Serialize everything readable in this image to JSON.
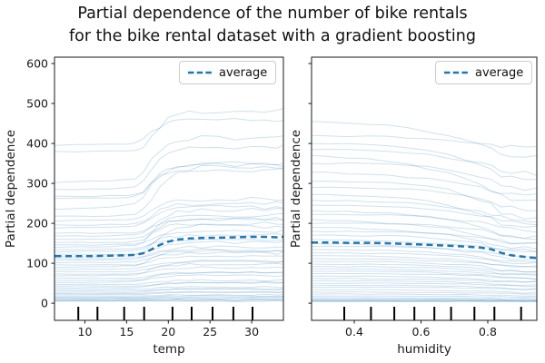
{
  "title": {
    "line1": "Partial dependence of the number of bike rentals",
    "line2": "for the bike rental dataset with a gradient boosting"
  },
  "legend": {
    "label": "average"
  },
  "colors": {
    "ice": "#1f77b4",
    "ice_opacity": "0.22",
    "average": "#1f77b4",
    "axis": "#1a1a1a",
    "rug": "#000000"
  },
  "chart_data": [
    {
      "type": "line",
      "xlabel": "temp",
      "ylabel": "Partial dependence",
      "xlim": [
        6.35,
        33.8
      ],
      "ylim": [
        -43,
        616
      ],
      "xticks": [
        10,
        15,
        20,
        25,
        30
      ],
      "xtick_labels": [
        "10",
        "15",
        "20",
        "25",
        "30"
      ],
      "yticks": [
        0,
        100,
        200,
        300,
        400,
        500,
        600
      ],
      "ytick_labels": [
        "0",
        "100",
        "200",
        "300",
        "400",
        "500",
        "600"
      ],
      "show_ytick_labels": true,
      "legend": "average",
      "legend_position": "upper right",
      "grid": false,
      "deciles": [
        9.2,
        11.5,
        14.7,
        17.1,
        20.5,
        22.8,
        25.3,
        27.8,
        30.1
      ],
      "x": [
        6.4,
        9,
        11,
        13,
        15,
        16,
        17,
        18,
        19,
        20,
        21,
        22.5,
        24,
        26,
        28,
        30,
        31.5,
        33,
        33.8
      ],
      "profile": [
        0,
        0.005,
        0.01,
        0.02,
        0.04,
        0.06,
        0.18,
        0.45,
        0.7,
        0.85,
        0.93,
        0.97,
        1.0,
        1.0,
        1.0,
        1.0,
        0.99,
        1.0,
        1.01
      ],
      "average": [
        118,
        118,
        118,
        119,
        120,
        121,
        125,
        135,
        146,
        154,
        159,
        162,
        163,
        164,
        165,
        166,
        166,
        165,
        166
      ],
      "ice_lines": [
        [
          395,
          65
        ],
        [
          380,
          100
        ],
        [
          302,
          112
        ],
        [
          285,
          105
        ],
        [
          268,
          82
        ],
        [
          262,
          83
        ],
        [
          235,
          105
        ],
        [
          218,
          112
        ],
        [
          205,
          55
        ],
        [
          196,
          54
        ],
        [
          188,
          52
        ],
        [
          175,
          60
        ],
        [
          168,
          42
        ],
        [
          160,
          50
        ],
        [
          152,
          48
        ],
        [
          146,
          34
        ],
        [
          140,
          80
        ],
        [
          134,
          36
        ],
        [
          128,
          32
        ],
        [
          122,
          30
        ],
        [
          117,
          75
        ],
        [
          112,
          28
        ],
        [
          107,
          26
        ],
        [
          101,
          24
        ],
        [
          96,
          22
        ],
        [
          90,
          40
        ],
        [
          85,
          20
        ],
        [
          79,
          18
        ],
        [
          73,
          16
        ],
        [
          68,
          35
        ],
        [
          62,
          14
        ],
        [
          57,
          12
        ],
        [
          52,
          25
        ],
        [
          47,
          10
        ],
        [
          43,
          8
        ],
        [
          39,
          14
        ],
        [
          35,
          6
        ],
        [
          31,
          5
        ],
        [
          27,
          8
        ],
        [
          24,
          4
        ],
        [
          21,
          6
        ],
        [
          18,
          3
        ],
        [
          15,
          3
        ],
        [
          13,
          2
        ],
        [
          11,
          2
        ],
        [
          9,
          1
        ],
        [
          7,
          1
        ],
        [
          6,
          1
        ],
        [
          5,
          0
        ]
      ]
    },
    {
      "type": "line",
      "xlabel": "humidity",
      "ylabel": "Partial dependence",
      "xlim": [
        0.272,
        0.947
      ],
      "ylim": [
        -43,
        616
      ],
      "xticks": [
        0.4,
        0.6,
        0.8
      ],
      "xtick_labels": [
        "0.4",
        "0.6",
        "0.8"
      ],
      "yticks": [
        0,
        100,
        200,
        300,
        400,
        500,
        600
      ],
      "ytick_labels": [],
      "show_ytick_labels": false,
      "legend": "average",
      "legend_position": "upper right",
      "grid": false,
      "deciles": [
        0.37,
        0.45,
        0.52,
        0.58,
        0.64,
        0.69,
        0.76,
        0.82,
        0.9
      ],
      "x": [
        0.272,
        0.32,
        0.38,
        0.44,
        0.5,
        0.56,
        0.62,
        0.68,
        0.73,
        0.78,
        0.81,
        0.84,
        0.87,
        0.91,
        0.947
      ],
      "profile": [
        0,
        0.01,
        0.02,
        0.04,
        0.07,
        0.12,
        0.2,
        0.3,
        0.42,
        0.55,
        0.68,
        0.85,
        0.92,
        0.97,
        1.0
      ],
      "average": [
        152,
        152,
        151,
        151,
        150,
        148,
        146,
        144,
        142,
        139,
        135,
        126,
        120,
        116,
        113
      ],
      "ice_lines": [
        [
          455,
          -90
        ],
        [
          420,
          -30
        ],
        [
          400,
          -95
        ],
        [
          385,
          -60
        ],
        [
          370,
          -115
        ],
        [
          350,
          -65
        ],
        [
          328,
          -60
        ],
        [
          305,
          -95
        ],
        [
          290,
          -55
        ],
        [
          272,
          -85
        ],
        [
          258,
          -50
        ],
        [
          245,
          -45
        ],
        [
          232,
          -70
        ],
        [
          222,
          -40
        ],
        [
          210,
          -60
        ],
        [
          200,
          -35
        ],
        [
          190,
          -55
        ],
        [
          180,
          -30
        ],
        [
          170,
          -45
        ],
        [
          160,
          -28
        ],
        [
          150,
          -40
        ],
        [
          142,
          -25
        ],
        [
          134,
          -35
        ],
        [
          126,
          -22
        ],
        [
          119,
          -30
        ],
        [
          112,
          -20
        ],
        [
          105,
          -25
        ],
        [
          98,
          -18
        ],
        [
          92,
          -22
        ],
        [
          86,
          -15
        ],
        [
          80,
          -18
        ],
        [
          74,
          -12
        ],
        [
          68,
          -15
        ],
        [
          62,
          -10
        ],
        [
          56,
          -12
        ],
        [
          50,
          -8
        ],
        [
          45,
          -10
        ],
        [
          40,
          -6
        ],
        [
          34,
          -8
        ],
        [
          28,
          -5
        ],
        [
          23,
          -4
        ],
        [
          18,
          -3
        ],
        [
          14,
          -3
        ],
        [
          11,
          -2
        ],
        [
          9,
          -2
        ],
        [
          7,
          -1
        ],
        [
          6,
          -1
        ],
        [
          5,
          -1
        ],
        [
          4,
          0
        ]
      ]
    }
  ]
}
